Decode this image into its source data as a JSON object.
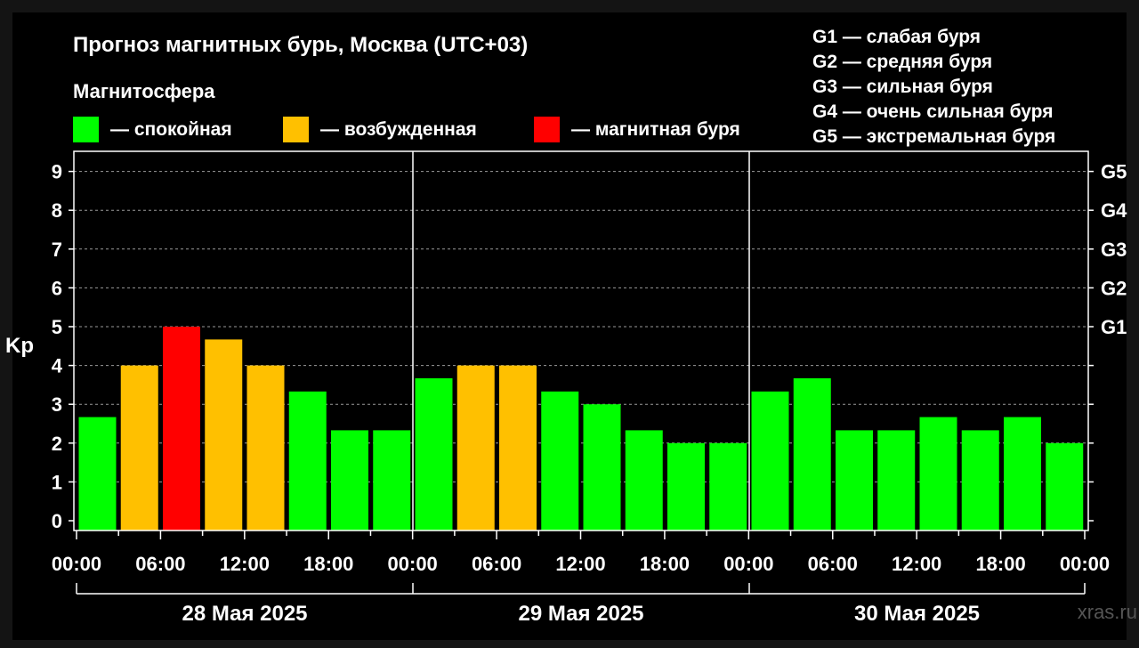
{
  "chart_data": {
    "type": "bar",
    "title": "Прогноз магнитных бурь, Москва (UTC+03)",
    "ylabel": "Kp",
    "ylim": [
      0,
      9
    ],
    "yticks": [
      "0",
      "1",
      "2",
      "3",
      "4",
      "5",
      "6",
      "7",
      "8",
      "9"
    ],
    "g_scale": [
      {
        "label": "G1",
        "kp": 5
      },
      {
        "label": "G2",
        "kp": 6
      },
      {
        "label": "G3",
        "kp": 7
      },
      {
        "label": "G4",
        "kp": 8
      },
      {
        "label": "G5",
        "kp": 9
      }
    ],
    "g_legend": [
      "G1 — слабая буря",
      "G2 — средняя буря",
      "G3 — сильная буря",
      "G4 — очень сильная буря",
      "G5 — экстремальная буря"
    ],
    "magnetosphere_legend": {
      "title": "Магнитосфера",
      "items": [
        {
          "label": "— спокойная",
          "color": "#00ff00"
        },
        {
          "label": "— возбужденная",
          "color": "#ffc000"
        },
        {
          "label": "— магнитная буря",
          "color": "#ff0000"
        }
      ]
    },
    "days": [
      {
        "label": "28 Мая 2025",
        "values": [
          2.67,
          4.0,
          5.0,
          4.67,
          4.0,
          3.33,
          2.33,
          2.33
        ],
        "states": [
          "quiet",
          "active",
          "storm",
          "active",
          "active",
          "quiet",
          "quiet",
          "quiet"
        ]
      },
      {
        "label": "29 Мая 2025",
        "values": [
          3.67,
          4.0,
          4.0,
          3.33,
          3.0,
          2.33,
          2.0,
          2.0
        ],
        "states": [
          "quiet",
          "active",
          "active",
          "quiet",
          "quiet",
          "quiet",
          "quiet",
          "quiet"
        ]
      },
      {
        "label": "30 Мая 2025",
        "values": [
          3.33,
          3.67,
          2.33,
          2.33,
          2.67,
          2.33,
          2.67,
          2.0
        ],
        "states": [
          "quiet",
          "quiet",
          "quiet",
          "quiet",
          "quiet",
          "quiet",
          "quiet",
          "quiet"
        ]
      }
    ],
    "time_labels": [
      "00:00",
      "06:00",
      "12:00",
      "18:00",
      "00:00",
      "06:00",
      "12:00",
      "18:00",
      "00:00",
      "06:00",
      "12:00",
      "18:00",
      "00:00"
    ],
    "colors": {
      "quiet": "#00ff00",
      "active": "#ffc000",
      "storm": "#ff0000",
      "background": "#000000",
      "axis": "#ffffff",
      "grid": "#9a9a9a"
    },
    "grid": true,
    "watermark": "xras.ru"
  }
}
